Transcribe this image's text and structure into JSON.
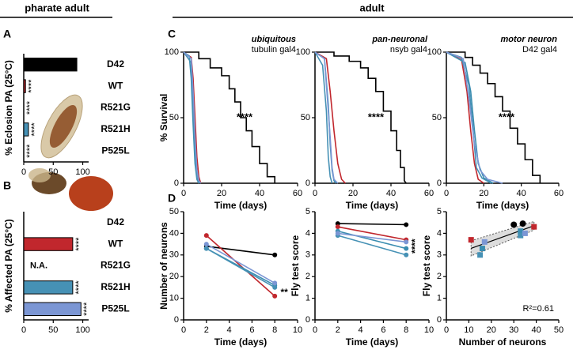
{
  "headers": {
    "left": "pharate adult",
    "right": "adult"
  },
  "panel_labels": [
    "A",
    "B",
    "C",
    "D"
  ],
  "chart_data": [
    {
      "type": "hbar",
      "ylabel": "% Eclosion PA (25°C)",
      "categories": [
        "D42",
        "WT",
        "R521G",
        "R521H",
        "P525L"
      ],
      "values": [
        90,
        3,
        0,
        8,
        0
      ],
      "colors": [
        "#000000",
        "#c1272d",
        "#3a8db0",
        "#4691b5",
        "#7b96d4"
      ],
      "significance": [
        null,
        "****",
        "****",
        "****",
        "****"
      ],
      "xlim": [
        0,
        110
      ],
      "xticks": [
        0,
        50,
        100
      ]
    },
    {
      "type": "hbar",
      "ylabel": "% Affected PA (25°C)",
      "categories": [
        "D42",
        "WT",
        "R521G",
        "R521H",
        "P525L"
      ],
      "values": [
        0,
        83,
        null,
        83,
        97
      ],
      "value_labels": [
        null,
        null,
        "N.A.",
        null,
        null
      ],
      "colors": [
        "#000000",
        "#c1272d",
        "#3a8db0",
        "#4691b5",
        "#7b96d4"
      ],
      "significance": [
        null,
        "****",
        null,
        "****",
        "****"
      ],
      "xlim": [
        0,
        110
      ],
      "xticks": [
        0,
        50,
        100
      ]
    },
    {
      "type": "step",
      "title": "ubiquitous",
      "subtitle": "tubulin gal4",
      "xlabel": "Time (days)",
      "ylabel": "% Survival",
      "annotation": "****",
      "xlim": [
        0,
        60
      ],
      "xticks": [
        0,
        20,
        40,
        60
      ],
      "ylim": [
        0,
        100
      ],
      "yticks": [
        0,
        50,
        100
      ],
      "series": [
        {
          "color": "#000000",
          "x": [
            0,
            8,
            8,
            14,
            14,
            20,
            20,
            24,
            24,
            27,
            27,
            30,
            30,
            33,
            33,
            36,
            36,
            40,
            40,
            44,
            44,
            48,
            48
          ],
          "values": [
            100,
            100,
            95,
            95,
            88,
            88,
            82,
            82,
            72,
            72,
            62,
            62,
            50,
            50,
            40,
            40,
            28,
            28,
            15,
            15,
            5,
            5,
            0
          ]
        },
        {
          "color": "#c1272d",
          "x": [
            0,
            4,
            5,
            6,
            7,
            8,
            9
          ],
          "values": [
            100,
            96,
            80,
            50,
            20,
            5,
            0
          ]
        },
        {
          "color": "#3a8db0",
          "x": [
            0,
            3,
            4,
            5,
            6,
            7,
            8
          ],
          "values": [
            100,
            97,
            80,
            45,
            15,
            3,
            0
          ]
        },
        {
          "color": "#4691b5",
          "x": [
            0,
            4,
            5,
            6,
            7,
            8
          ],
          "values": [
            100,
            92,
            60,
            25,
            5,
            0
          ]
        },
        {
          "color": "#7b96d4",
          "x": [
            0,
            4,
            5,
            6,
            7,
            8,
            9
          ],
          "values": [
            100,
            95,
            70,
            35,
            10,
            2,
            0
          ]
        }
      ]
    },
    {
      "type": "step",
      "title": "pan-neuronal",
      "subtitle": "nsyb gal4",
      "xlabel": "Time (days)",
      "annotation": "****",
      "xlim": [
        0,
        60
      ],
      "xticks": [
        0,
        20,
        40,
        60
      ],
      "ylim": [
        0,
        100
      ],
      "yticks": [
        0,
        50,
        100
      ],
      "series": [
        {
          "color": "#000000",
          "x": [
            0,
            10,
            10,
            18,
            18,
            24,
            24,
            28,
            28,
            32,
            32,
            36,
            36,
            40,
            40,
            43,
            43,
            45,
            45,
            47,
            47,
            48
          ],
          "values": [
            100,
            100,
            97,
            97,
            93,
            93,
            88,
            88,
            80,
            80,
            70,
            70,
            55,
            55,
            40,
            40,
            25,
            25,
            12,
            12,
            2,
            0
          ]
        },
        {
          "color": "#c1272d",
          "x": [
            0,
            6,
            8,
            10,
            12,
            14,
            16
          ],
          "values": [
            100,
            95,
            70,
            40,
            15,
            3,
            0
          ]
        },
        {
          "color": "#3a8db0",
          "x": [
            0,
            5,
            7,
            8,
            9,
            10,
            11
          ],
          "values": [
            100,
            95,
            60,
            30,
            10,
            2,
            0
          ]
        },
        {
          "color": "#4691b5",
          "x": [
            0,
            4,
            6,
            7,
            8,
            9
          ],
          "values": [
            100,
            90,
            55,
            20,
            5,
            0
          ]
        },
        {
          "color": "#7b96d4",
          "x": [
            0,
            5,
            6,
            8,
            9,
            10,
            12
          ],
          "values": [
            100,
            95,
            75,
            35,
            12,
            3,
            0
          ]
        }
      ]
    },
    {
      "type": "step",
      "title": "motor neuron",
      "subtitle": "D42 gal4",
      "xlabel": "Time (days)",
      "annotation": "****",
      "xlim": [
        0,
        60
      ],
      "xticks": [
        0,
        20,
        40,
        60
      ],
      "ylim": [
        0,
        100
      ],
      "yticks": [
        0,
        50,
        100
      ],
      "series": [
        {
          "color": "#000000",
          "x": [
            0,
            10,
            10,
            14,
            14,
            18,
            18,
            22,
            22,
            26,
            26,
            30,
            30,
            34,
            34,
            38,
            38,
            42,
            42,
            46,
            46,
            50,
            50
          ],
          "values": [
            100,
            100,
            96,
            96,
            90,
            90,
            84,
            84,
            76,
            76,
            66,
            66,
            55,
            55,
            42,
            42,
            30,
            30,
            18,
            18,
            6,
            6,
            0
          ]
        },
        {
          "color": "#c1272d",
          "x": [
            0,
            8,
            11,
            13,
            15,
            17,
            20
          ],
          "values": [
            100,
            95,
            70,
            40,
            15,
            3,
            0
          ]
        },
        {
          "color": "#3a8db0",
          "x": [
            0,
            10,
            13,
            15,
            17,
            20,
            25
          ],
          "values": [
            100,
            92,
            70,
            40,
            15,
            4,
            0
          ]
        },
        {
          "color": "#4691b5",
          "x": [
            0,
            8,
            12,
            14,
            16,
            19,
            24
          ],
          "values": [
            100,
            96,
            75,
            45,
            12,
            4,
            0
          ]
        },
        {
          "color": "#7b96d4",
          "x": [
            0,
            9,
            12,
            15,
            18,
            22,
            30
          ],
          "values": [
            100,
            95,
            65,
            30,
            10,
            3,
            0
          ]
        }
      ]
    },
    {
      "type": "line",
      "xlabel": "Time (days)",
      "ylabel": "Number of neurons",
      "annotation": "**",
      "x": [
        2,
        8
      ],
      "xlim": [
        0,
        10
      ],
      "xticks": [
        0,
        2,
        4,
        6,
        8,
        10
      ],
      "ylim": [
        0,
        50
      ],
      "yticks": [
        0,
        10,
        20,
        30,
        40,
        50
      ],
      "series": [
        {
          "color": "#000000",
          "values": [
            34,
            30
          ]
        },
        {
          "color": "#c1272d",
          "values": [
            39,
            11
          ]
        },
        {
          "color": "#3a8db0",
          "values": [
            33,
            16
          ]
        },
        {
          "color": "#4691b5",
          "values": [
            33,
            15
          ]
        },
        {
          "color": "#7b96d4",
          "values": [
            35,
            17
          ]
        }
      ]
    },
    {
      "type": "line",
      "xlabel": "Time (days)",
      "ylabel": "Fly test score",
      "annotation": "****",
      "x": [
        2,
        8
      ],
      "xlim": [
        0,
        10
      ],
      "xticks": [
        0,
        2,
        4,
        6,
        8,
        10
      ],
      "ylim": [
        0,
        5
      ],
      "yticks": [
        0,
        1,
        2,
        3,
        4,
        5
      ],
      "series": [
        {
          "color": "#000000",
          "values": [
            4.45,
            4.4
          ]
        },
        {
          "color": "#c1272d",
          "values": [
            4.3,
            3.7
          ]
        },
        {
          "color": "#3a8db0",
          "values": [
            4.1,
            3.3
          ]
        },
        {
          "color": "#4691b5",
          "values": [
            3.9,
            3.0
          ]
        },
        {
          "color": "#7b96d4",
          "values": [
            4.0,
            3.6
          ]
        }
      ]
    },
    {
      "type": "scatter",
      "xlabel": "Number of neurons",
      "ylabel": "Fly test score",
      "annotation": "R²=0.61",
      "xlim": [
        0,
        50
      ],
      "xticks": [
        0,
        10,
        20,
        30,
        40,
        50
      ],
      "ylim": [
        0,
        5
      ],
      "yticks": [
        0,
        1,
        2,
        3,
        4,
        5
      ],
      "series": [
        {
          "color": "#000000",
          "marker": "circle",
          "x": [
            34,
            30
          ],
          "values": [
            4.45,
            4.4
          ]
        },
        {
          "color": "#c1272d",
          "marker": "square",
          "x": [
            39,
            11
          ],
          "values": [
            4.3,
            3.7
          ]
        },
        {
          "color": "#3a8db0",
          "marker": "square",
          "x": [
            33,
            16
          ],
          "values": [
            4.1,
            3.3
          ]
        },
        {
          "color": "#4691b5",
          "marker": "square",
          "x": [
            33,
            15
          ],
          "values": [
            3.9,
            3.0
          ]
        },
        {
          "color": "#7b96d4",
          "marker": "square",
          "x": [
            35,
            17
          ],
          "values": [
            4.0,
            3.6
          ]
        }
      ]
    }
  ]
}
